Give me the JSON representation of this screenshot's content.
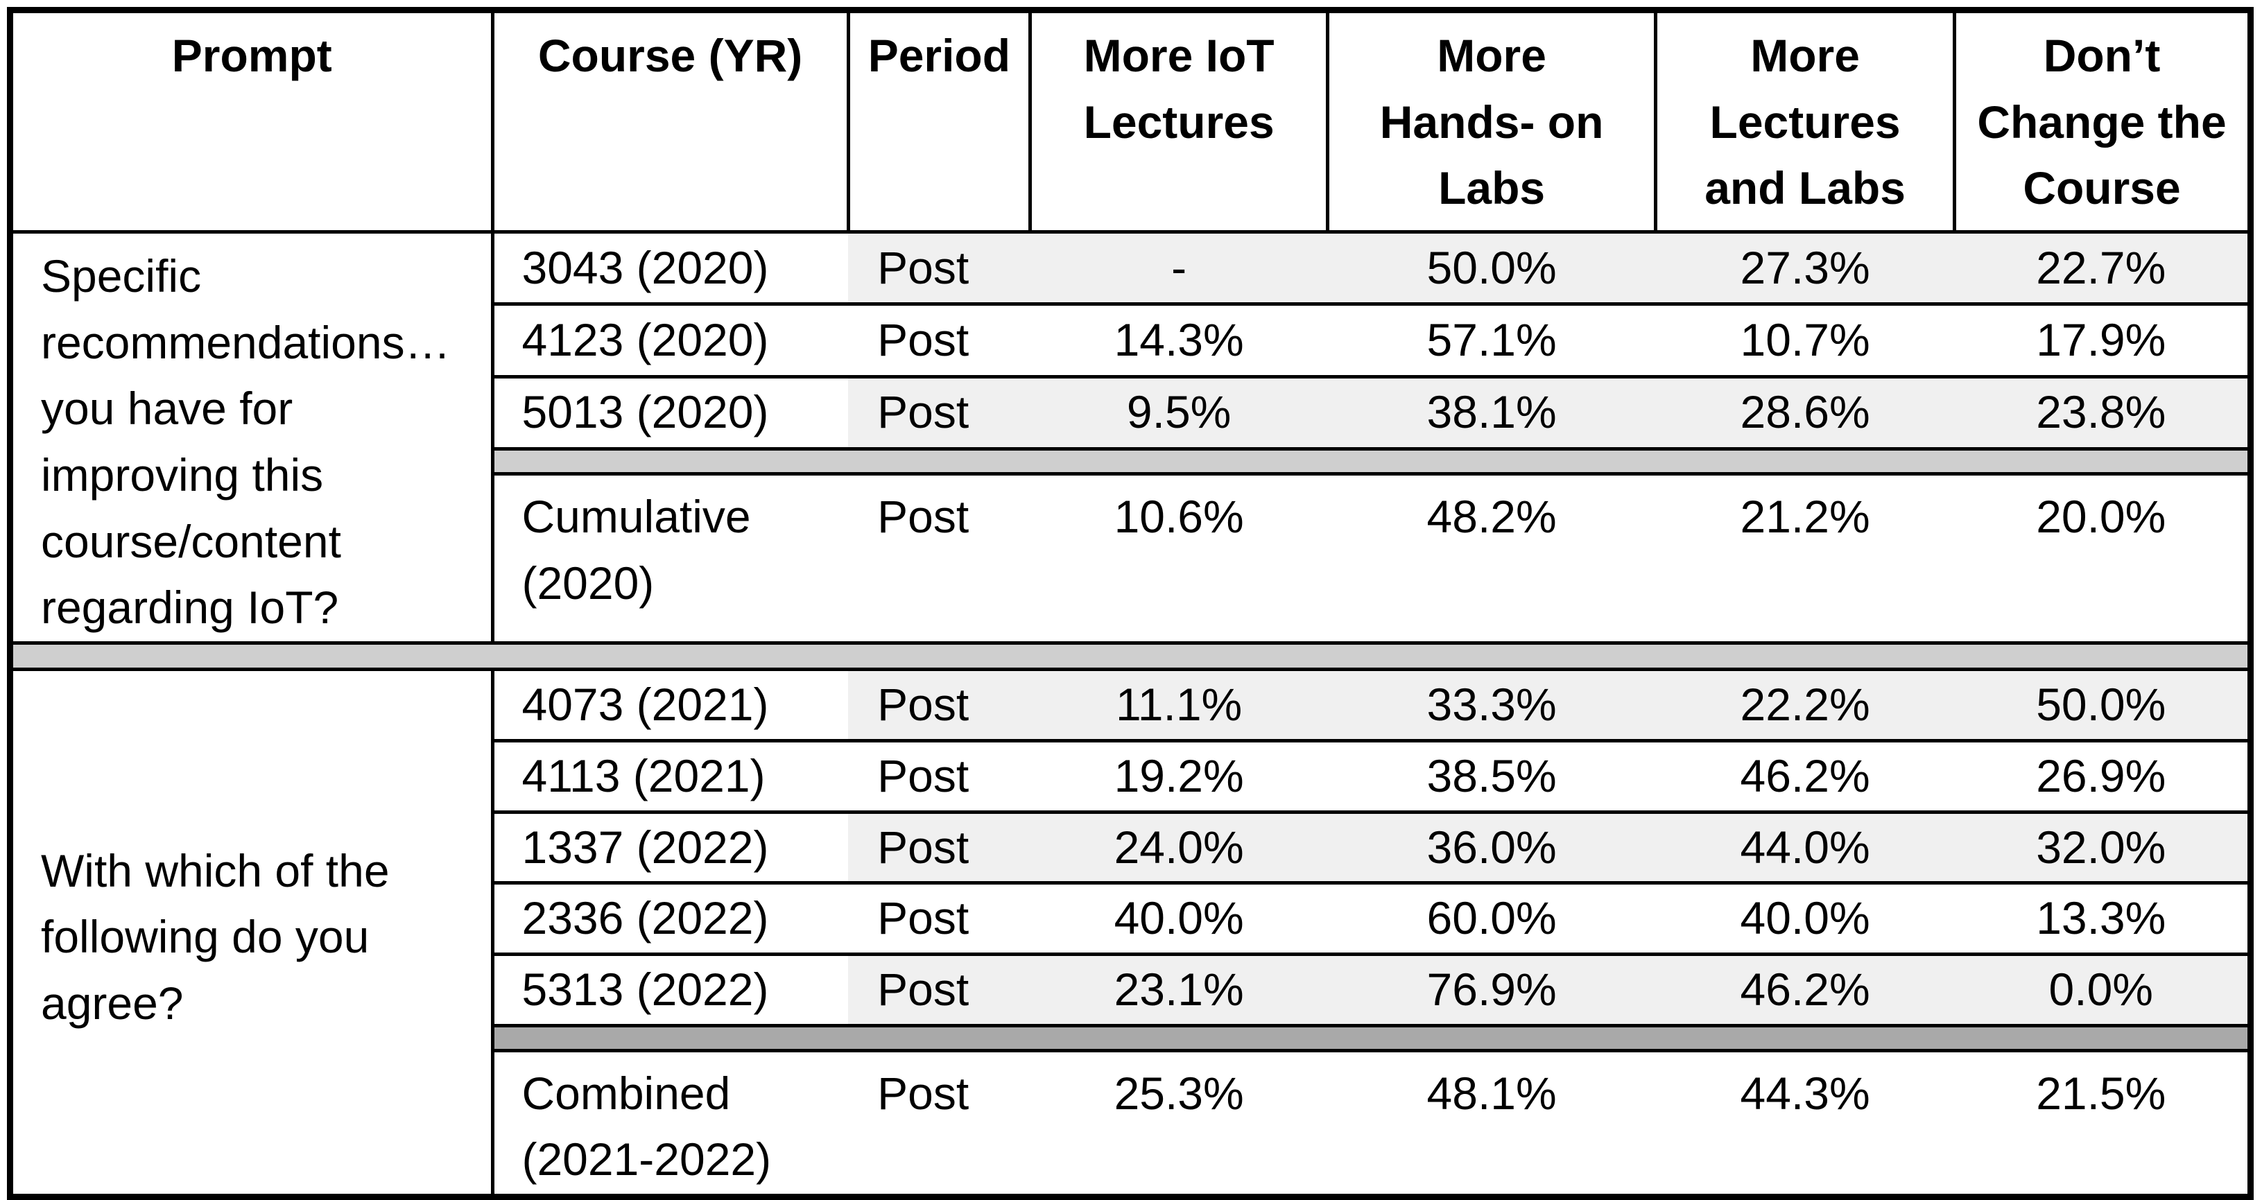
{
  "colors": {
    "row_shade": "#f0f0f0",
    "separator_light": "#cfcfcf",
    "separator_dark": "#a9a9a9",
    "border": "#000000"
  },
  "table": {
    "headers": [
      "Prompt",
      "Course (YR)",
      "Period",
      "More IoT\nLectures",
      "More\nHands- on\nLabs",
      "More\nLectures\nand Labs",
      "Don’t\nChange the\nCourse"
    ],
    "sections": [
      {
        "prompt": "Specific\nrecommendations…\nyou have for\nimproving this\ncourse/content\nregarding IoT?",
        "rows": [
          {
            "course": "3043 (2020)",
            "period": "Post",
            "values": [
              "-",
              "50.0%",
              "27.3%",
              "22.7%"
            ]
          },
          {
            "course": "4123 (2020)",
            "period": "Post",
            "values": [
              "14.3%",
              "57.1%",
              "10.7%",
              "17.9%"
            ]
          },
          {
            "course": "5013 (2020)",
            "period": "Post",
            "values": [
              "9.5%",
              "38.1%",
              "28.6%",
              "23.8%"
            ]
          }
        ],
        "summary": {
          "course": "Cumulative\n(2020)",
          "period": "Post",
          "values": [
            "10.6%",
            "48.2%",
            "21.2%",
            "20.0%"
          ]
        }
      },
      {
        "prompt": "With which of the\nfollowing do you\nagree?",
        "rows": [
          {
            "course": "4073 (2021)",
            "period": "Post",
            "values": [
              "11.1%",
              "33.3%",
              "22.2%",
              "50.0%"
            ]
          },
          {
            "course": "4113 (2021)",
            "period": "Post",
            "values": [
              "19.2%",
              "38.5%",
              "46.2%",
              "26.9%"
            ]
          },
          {
            "course": "1337 (2022)",
            "period": "Post",
            "values": [
              "24.0%",
              "36.0%",
              "44.0%",
              "32.0%"
            ]
          },
          {
            "course": "2336 (2022)",
            "period": "Post",
            "values": [
              "40.0%",
              "60.0%",
              "40.0%",
              "13.3%"
            ]
          },
          {
            "course": "5313 (2022)",
            "period": "Post",
            "values": [
              "23.1%",
              "76.9%",
              "46.2%",
              "0.0%"
            ]
          }
        ],
        "summary": {
          "course": "Combined\n(2021-2022)",
          "period": "Post",
          "values": [
            "25.3%",
            "48.1%",
            "44.3%",
            "21.5%"
          ]
        }
      }
    ]
  }
}
